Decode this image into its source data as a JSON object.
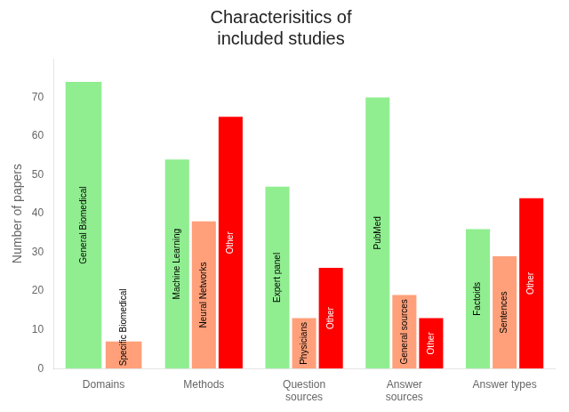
{
  "chart_data": {
    "type": "bar",
    "title": "Characterisitics of\nincluded studies",
    "ylabel": "Number of papers",
    "categories": [
      "Domains",
      "Methods",
      "Question\nsources",
      "Answer\nsources",
      "Answer types"
    ],
    "series": [
      {
        "color": "#90EE90",
        "values": [
          74,
          54,
          47,
          70,
          36
        ],
        "labels": [
          "General Biomedical",
          "Machine Learning",
          "Expert panel",
          "PubMed",
          "Factoids"
        ]
      },
      {
        "color": "#FFA07A",
        "values": [
          7,
          38,
          13,
          19,
          29
        ],
        "labels": [
          "Specific Biomedical",
          "Neural Networks",
          "Physicians",
          "General sources",
          "Sentences"
        ]
      },
      {
        "color": "#FF0000",
        "values": [
          null,
          65,
          26,
          13,
          44
        ],
        "labels": [
          null,
          "Other",
          "Other",
          "Other",
          "Other"
        ]
      }
    ],
    "ylim": [
      0,
      80
    ],
    "yticks": [
      0,
      10,
      20,
      30,
      40,
      50,
      60,
      70
    ],
    "grid": false
  }
}
